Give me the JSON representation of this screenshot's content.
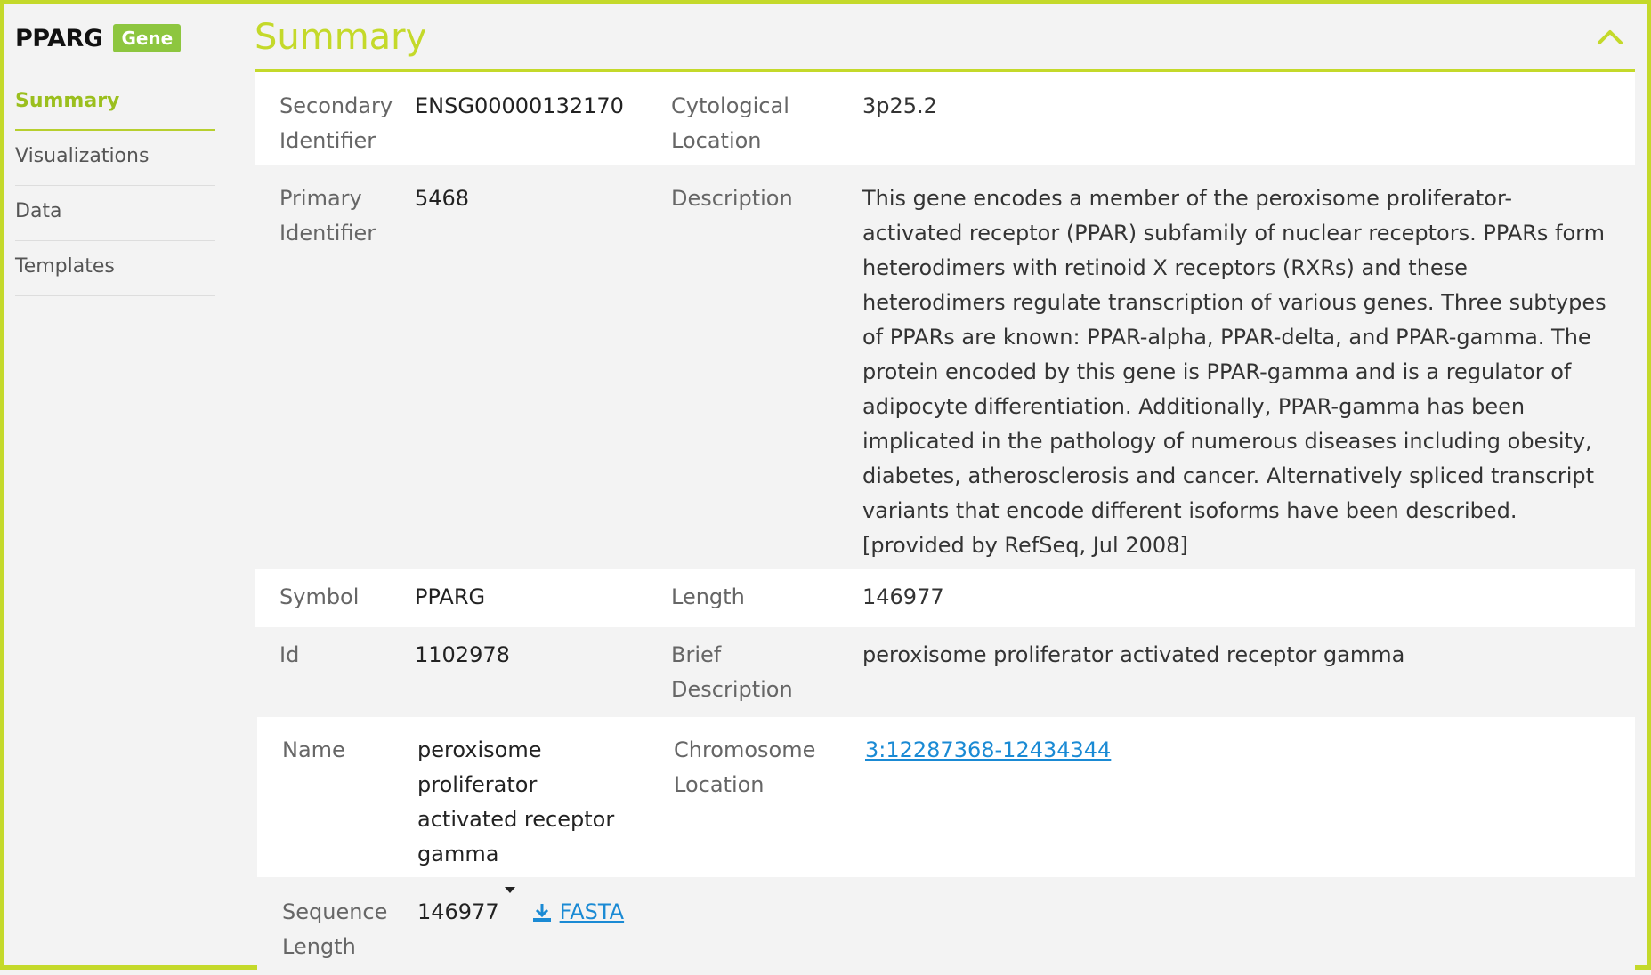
{
  "gene": {
    "name": "PPARG",
    "badge": "Gene"
  },
  "nav": [
    {
      "label": "Summary",
      "active": true
    },
    {
      "label": "Visualizations"
    },
    {
      "label": "Data"
    },
    {
      "label": "Templates"
    }
  ],
  "section": {
    "title": "Summary",
    "collapse_icon": "chevron-up-icon"
  },
  "fields": {
    "secondary_identifier": {
      "label": "Secondary Identifier",
      "value": "ENSG00000132170"
    },
    "cytological_location": {
      "label": "Cytological Location",
      "value": "3p25.2"
    },
    "primary_identifier": {
      "label": "Primary Identifier",
      "value": "5468"
    },
    "description": {
      "label": "Description",
      "value": "This gene encodes a member of the peroxisome proliferator-activated receptor (PPAR) subfamily of nuclear receptors. PPARs form heterodimers with retinoid X receptors (RXRs) and these heterodimers regulate transcription of various genes. Three subtypes of PPARs are known: PPAR-alpha, PPAR-delta, and PPAR-gamma. The protein encoded by this gene is PPAR-gamma and is a regulator of adipocyte differentiation. Additionally, PPAR-gamma has been implicated in the pathology of numerous diseases including obesity, diabetes, atherosclerosis and cancer. Alternatively spliced transcript variants that encode different isoforms have been described. [provided by RefSeq, Jul 2008]"
    },
    "symbol": {
      "label": "Symbol",
      "value": "PPARG"
    },
    "length": {
      "label": "Length",
      "value": "146977"
    },
    "id": {
      "label": "Id",
      "value": "1102978"
    },
    "brief_description": {
      "label": "Brief Description",
      "value": "peroxisome proliferator activated receptor gamma"
    },
    "name": {
      "label": "Name",
      "value": "peroxisome proliferator activated receptor gamma"
    },
    "chromosome_location": {
      "label": "Chromosome Location",
      "value": "3:12287368-12434344"
    },
    "sequence_length": {
      "label": "Sequence Length",
      "value": "146977",
      "download_label": "FASTA",
      "download_icon": "download-icon"
    }
  },
  "colors": {
    "accent": "#c4d92a",
    "badge": "#8dc63f",
    "link": "#1a8ad4"
  }
}
